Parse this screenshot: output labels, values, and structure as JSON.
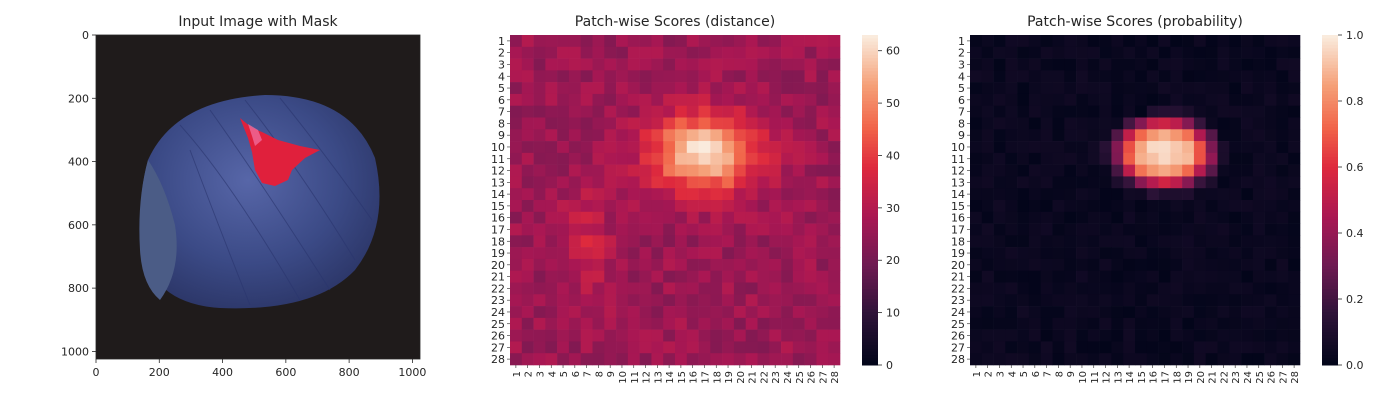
{
  "figure_background": "#ffffff",
  "chart_data": [
    {
      "type": "image",
      "title": "Input Image with Mask",
      "xticks": [
        "0",
        "200",
        "400",
        "600",
        "800",
        "1000"
      ],
      "yticks": [
        "0",
        "200",
        "400",
        "600",
        "800",
        "1000"
      ],
      "xlim": [
        0,
        1024
      ],
      "ylim": [
        1024,
        0
      ],
      "content": "hazelnut photograph with red defect mask",
      "colors": {
        "background": "#1f1b1b",
        "nut": "#3b4a86",
        "mask": "#e0203c",
        "cut_face": "#4b5c86"
      }
    },
    {
      "type": "heatmap",
      "title": "Patch-wise Scores (distance)",
      "rows": 28,
      "cols": 28,
      "row_labels": [
        "1",
        "2",
        "3",
        "4",
        "5",
        "6",
        "7",
        "8",
        "9",
        "10",
        "11",
        "12",
        "13",
        "14",
        "15",
        "16",
        "17",
        "18",
        "19",
        "20",
        "21",
        "22",
        "23",
        "24",
        "25",
        "26",
        "27",
        "28"
      ],
      "col_labels": [
        "1",
        "2",
        "3",
        "4",
        "5",
        "6",
        "7",
        "8",
        "9",
        "10",
        "11",
        "12",
        "13",
        "14",
        "15",
        "16",
        "17",
        "18",
        "19",
        "20",
        "21",
        "22",
        "23",
        "24",
        "25",
        "26",
        "27",
        "28"
      ],
      "colorbar_ticks": [
        "0",
        "10",
        "20",
        "30",
        "40",
        "50",
        "60"
      ],
      "vmin": 0,
      "vmax": 63,
      "colormap": "rocket",
      "hotspot": {
        "center_row": 10.5,
        "center_col": 17,
        "peak": 63
      },
      "baseline": 26
    },
    {
      "type": "heatmap",
      "title": "Patch-wise Scores (probability)",
      "rows": 28,
      "cols": 28,
      "row_labels": [
        "1",
        "2",
        "3",
        "4",
        "5",
        "6",
        "7",
        "8",
        "9",
        "10",
        "11",
        "12",
        "13",
        "14",
        "15",
        "16",
        "17",
        "18",
        "19",
        "20",
        "21",
        "22",
        "23",
        "24",
        "25",
        "26",
        "27",
        "28"
      ],
      "col_labels": [
        "1",
        "2",
        "3",
        "4",
        "5",
        "6",
        "7",
        "8",
        "9",
        "10",
        "11",
        "12",
        "13",
        "14",
        "15",
        "16",
        "17",
        "18",
        "19",
        "20",
        "21",
        "22",
        "23",
        "24",
        "25",
        "26",
        "27",
        "28"
      ],
      "colorbar_ticks": [
        "0.0",
        "0.2",
        "0.4",
        "0.6",
        "0.8",
        "1.0"
      ],
      "vmin": 0,
      "vmax": 1,
      "colormap": "rocket",
      "hotspot": {
        "center_row": 10.5,
        "center_col": 17,
        "peak": 0.92
      },
      "baseline": 0
    }
  ]
}
